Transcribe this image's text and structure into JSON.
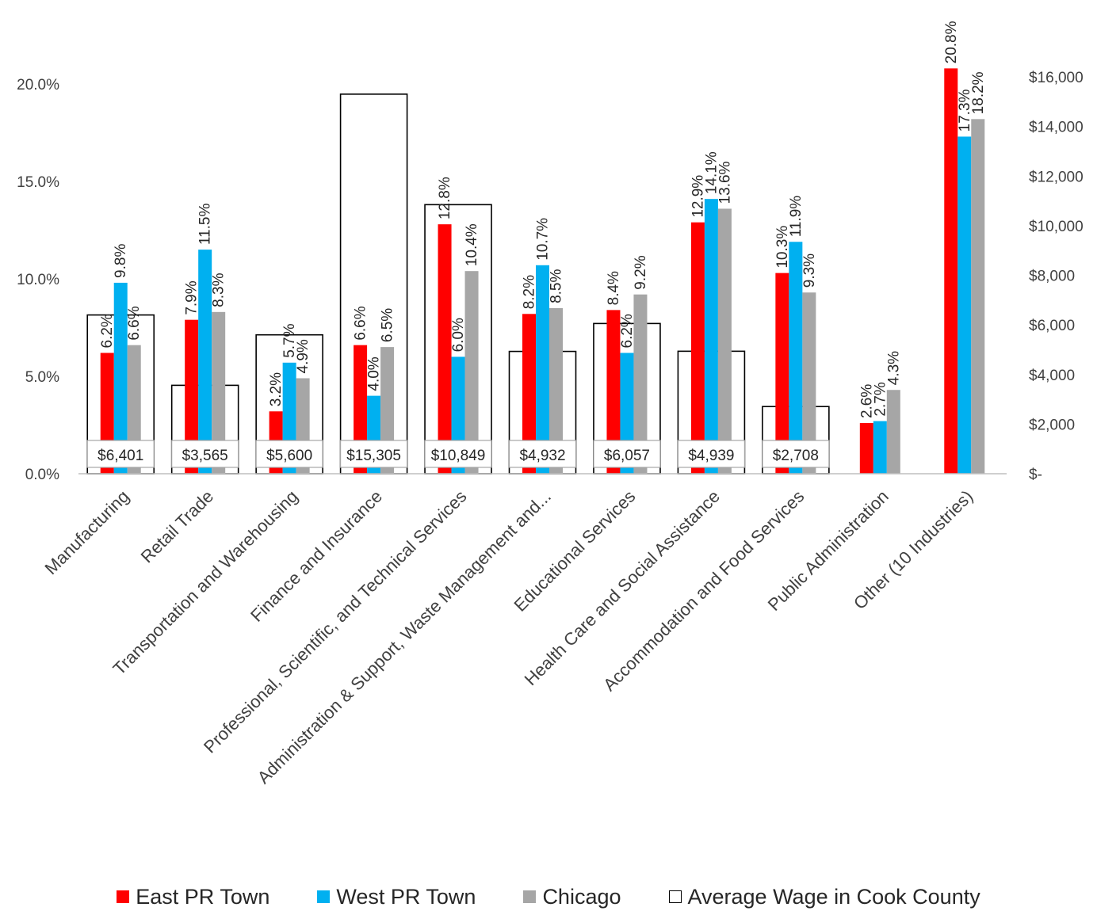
{
  "chart_data": {
    "type": "bar",
    "categories": [
      "Manufacturing",
      "Retail Trade",
      "Transportation and Warehousing",
      "Finance and Insurance",
      "Professional, Scientific, and Technical Services",
      "Administration & Support, Waste Management and...",
      "Educational Services",
      "Health Care and Social Assistance",
      "Accommodation and Food Services",
      "Public Administration",
      "Other (10 Industries)"
    ],
    "series": [
      {
        "name": "East PR Town",
        "color": "#ff0000",
        "values": [
          6.2,
          7.9,
          3.2,
          6.6,
          12.8,
          8.2,
          8.4,
          12.9,
          10.3,
          2.6,
          20.8
        ],
        "labels": [
          "6.2%",
          "7.9%",
          "3.2%",
          "6.6%",
          "12.8%",
          "8.2%",
          "8.4%",
          "12.9%",
          "10.3%",
          "2.6%",
          "20.8%"
        ]
      },
      {
        "name": "West PR Town",
        "color": "#00b0f0",
        "values": [
          9.8,
          11.5,
          5.7,
          4.0,
          6.0,
          10.7,
          6.2,
          14.1,
          11.9,
          2.7,
          17.3
        ],
        "labels": [
          "9.8%",
          "11.5%",
          "5.7%",
          "4.0%",
          "6.0%",
          "10.7%",
          "6.2%",
          "14.1%",
          "11.9%",
          "2.7%",
          "17.3%"
        ]
      },
      {
        "name": "Chicago",
        "color": "#a6a6a6",
        "values": [
          6.6,
          8.3,
          4.9,
          6.5,
          10.4,
          8.5,
          9.2,
          13.6,
          9.3,
          4.3,
          18.2
        ],
        "labels": [
          "6.6%",
          "8.3%",
          "4.9%",
          "6.5%",
          "10.4%",
          "8.5%",
          "9.2%",
          "13.6%",
          "9.3%",
          "4.3%",
          "18.2%"
        ]
      }
    ],
    "secondary_series": {
      "name": "Average Wage in Cook County",
      "style": "hollow bar",
      "axis": "right",
      "values": [
        6401,
        3565,
        5600,
        15305,
        10849,
        4932,
        6057,
        4939,
        2708,
        null,
        null
      ],
      "labels": [
        "$6,401",
        "$3,565",
        "$5,600",
        "$15,305",
        "$10,849",
        "$4,932",
        "$6,057",
        "$4,939",
        "$2,708",
        "",
        ""
      ]
    },
    "y_left": {
      "ylim": [
        0,
        22.4
      ],
      "ticks": [
        0,
        5,
        10,
        15,
        20
      ],
      "tick_labels": [
        "0.0%",
        "5.0%",
        "10.0%",
        "15.0%",
        "20.0%"
      ]
    },
    "y_right": {
      "ylim": [
        0,
        17600
      ],
      "ticks": [
        0,
        2000,
        4000,
        6000,
        8000,
        10000,
        12000,
        14000,
        16000
      ],
      "tick_labels": [
        "$-",
        "$2,000",
        "$4,000",
        "$6,000",
        "$8,000",
        "$10,000",
        "$12,000",
        "$14,000",
        "$16,000"
      ]
    },
    "title": "",
    "grid": false,
    "legend_position": "bottom"
  }
}
